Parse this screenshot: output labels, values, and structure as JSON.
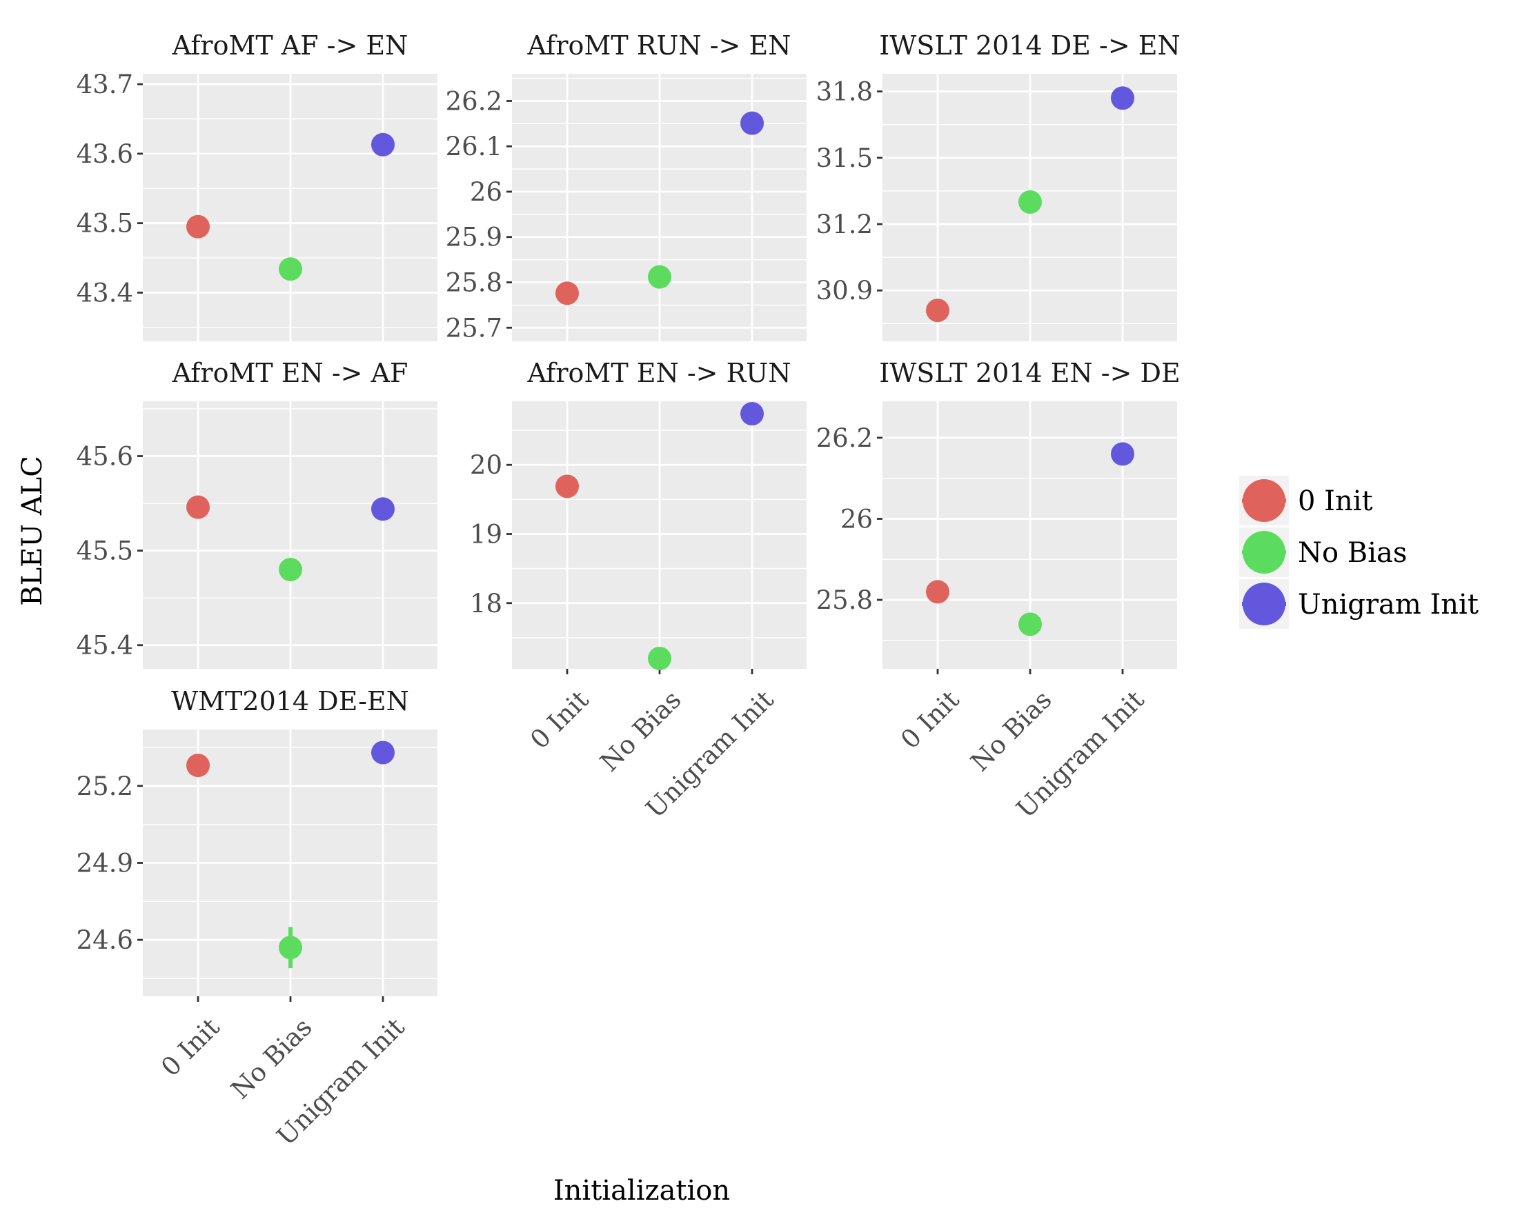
{
  "chart_data": {
    "type": "scatter",
    "layout": "facet_wrap",
    "categories": [
      "0 Init",
      "No Bias",
      "Unigram Init"
    ],
    "xlabel": "Initialization",
    "ylabel": "BLEU ALC",
    "legend": {
      "position": "right",
      "entries": [
        "0 Init",
        "No Bias",
        "Unigram Init"
      ],
      "colors": [
        "#E0625C",
        "#5BDC5F",
        "#6357DE"
      ]
    },
    "panels": [
      {
        "title": "AfroMT AF -> EN",
        "ylim": [
          43.33,
          43.715
        ],
        "yticks": [
          43.4,
          43.5,
          43.6,
          43.7
        ],
        "tick_labels": [
          "43.4",
          "43.5",
          "43.6",
          "43.7"
        ],
        "values": [
          43.495,
          43.434,
          43.613
        ],
        "err": [
          0,
          0,
          0
        ]
      },
      {
        "title": "AfroMT RUN -> EN",
        "ylim": [
          25.67,
          26.26
        ],
        "yticks": [
          25.7,
          25.8,
          25.9,
          26.0,
          26.1,
          26.2
        ],
        "tick_labels": [
          "25.7",
          "25.8",
          "25.9",
          "26",
          "26.1",
          "26.2"
        ],
        "values": [
          25.776,
          25.812,
          26.151
        ],
        "err": [
          0,
          0,
          0
        ]
      },
      {
        "title": "IWSLT 2014 DE -> EN",
        "ylim": [
          30.67,
          31.88
        ],
        "yticks": [
          30.9,
          31.2,
          31.5,
          31.8
        ],
        "tick_labels": [
          "30.9",
          "31.2",
          "31.5",
          "31.8"
        ],
        "values": [
          30.81,
          31.3,
          31.77
        ],
        "err": [
          0,
          0,
          0
        ]
      },
      {
        "title": "AfroMT EN -> AF",
        "ylim": [
          45.375,
          45.658
        ],
        "yticks": [
          45.4,
          45.5,
          45.6
        ],
        "tick_labels": [
          "45.4",
          "45.5",
          "45.6"
        ],
        "values": [
          45.546,
          45.48,
          45.544
        ],
        "err": [
          0,
          0,
          0.012
        ]
      },
      {
        "title": "AfroMT EN -> RUN",
        "ylim": [
          17.05,
          20.92
        ],
        "yticks": [
          18,
          19,
          20
        ],
        "tick_labels": [
          "18",
          "19",
          "20"
        ],
        "values": [
          19.69,
          17.2,
          20.74
        ],
        "err": [
          0,
          0,
          0
        ]
      },
      {
        "title": "IWSLT 2014 EN -> DE",
        "ylim": [
          25.63,
          26.29
        ],
        "yticks": [
          25.8,
          26.0,
          26.2
        ],
        "tick_labels": [
          "25.8",
          "26",
          "26.2"
        ],
        "values": [
          25.82,
          25.74,
          26.16
        ],
        "err": [
          0,
          0,
          0
        ]
      },
      {
        "title": "WMT2014 DE-EN",
        "ylim": [
          24.38,
          25.42
        ],
        "yticks": [
          24.6,
          24.9,
          25.2
        ],
        "tick_labels": [
          "24.6",
          "24.9",
          "25.2"
        ],
        "values": [
          25.28,
          24.57,
          25.33
        ],
        "err": [
          0,
          0.08,
          0
        ]
      }
    ]
  }
}
